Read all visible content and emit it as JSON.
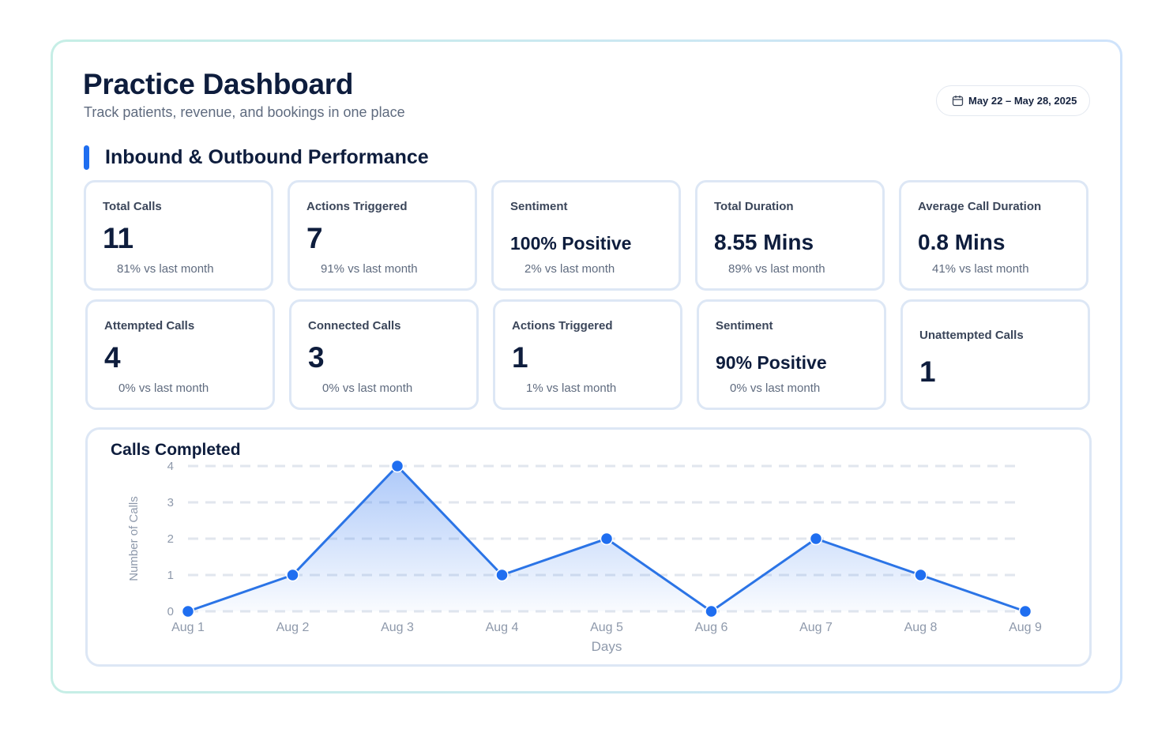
{
  "header": {
    "title": "Practice Dashboard",
    "subtitle": "Track patients, revenue, and bookings in one place",
    "date_range": "May 22 – May 28, 2025",
    "date_icon": "calendar-icon"
  },
  "section": {
    "title": "Inbound & Outbound Performance",
    "accent_color": "#1f6ef0"
  },
  "metrics_row1": [
    {
      "label": "Total Calls",
      "value": "11",
      "trend": "81% vs last month"
    },
    {
      "label": "Actions Triggered",
      "value": "7",
      "trend": "91% vs last month"
    },
    {
      "label": "Sentiment",
      "value": "100% Positive",
      "trend": "2% vs last month"
    },
    {
      "label": "Total Duration",
      "value": "8.55 Mins",
      "trend": "89% vs last month"
    },
    {
      "label": "Average Call Duration",
      "value": "0.8 Mins",
      "trend": "41% vs last month"
    }
  ],
  "metrics_row2": [
    {
      "label": "Attempted Calls",
      "value": "4",
      "trend": "0% vs last month"
    },
    {
      "label": "Connected Calls",
      "value": "3",
      "trend": "0% vs last month"
    },
    {
      "label": "Actions Triggered",
      "value": "1",
      "trend": "1% vs last month"
    },
    {
      "label": "Sentiment",
      "value": "90% Positive",
      "trend": "0% vs last month"
    },
    {
      "label": "Unattempted Calls",
      "value": "1"
    }
  ],
  "chart_data": {
    "type": "area",
    "title": "Calls Completed",
    "xlabel": "Days",
    "ylabel": "Number of Calls",
    "categories": [
      "Aug 1",
      "Aug 2",
      "Aug 3",
      "Aug 4",
      "Aug 5",
      "Aug 6",
      "Aug 7",
      "Aug 8",
      "Aug 9"
    ],
    "values": [
      0,
      1,
      4,
      1,
      2,
      0,
      2,
      1,
      0
    ],
    "ylim": [
      0,
      4
    ],
    "yticks": [
      0,
      1,
      2,
      3,
      4
    ],
    "grid": true,
    "line_color": "#2b74e6",
    "point_color": "#1f6ef0",
    "fill_color": "#3d7ff0"
  }
}
